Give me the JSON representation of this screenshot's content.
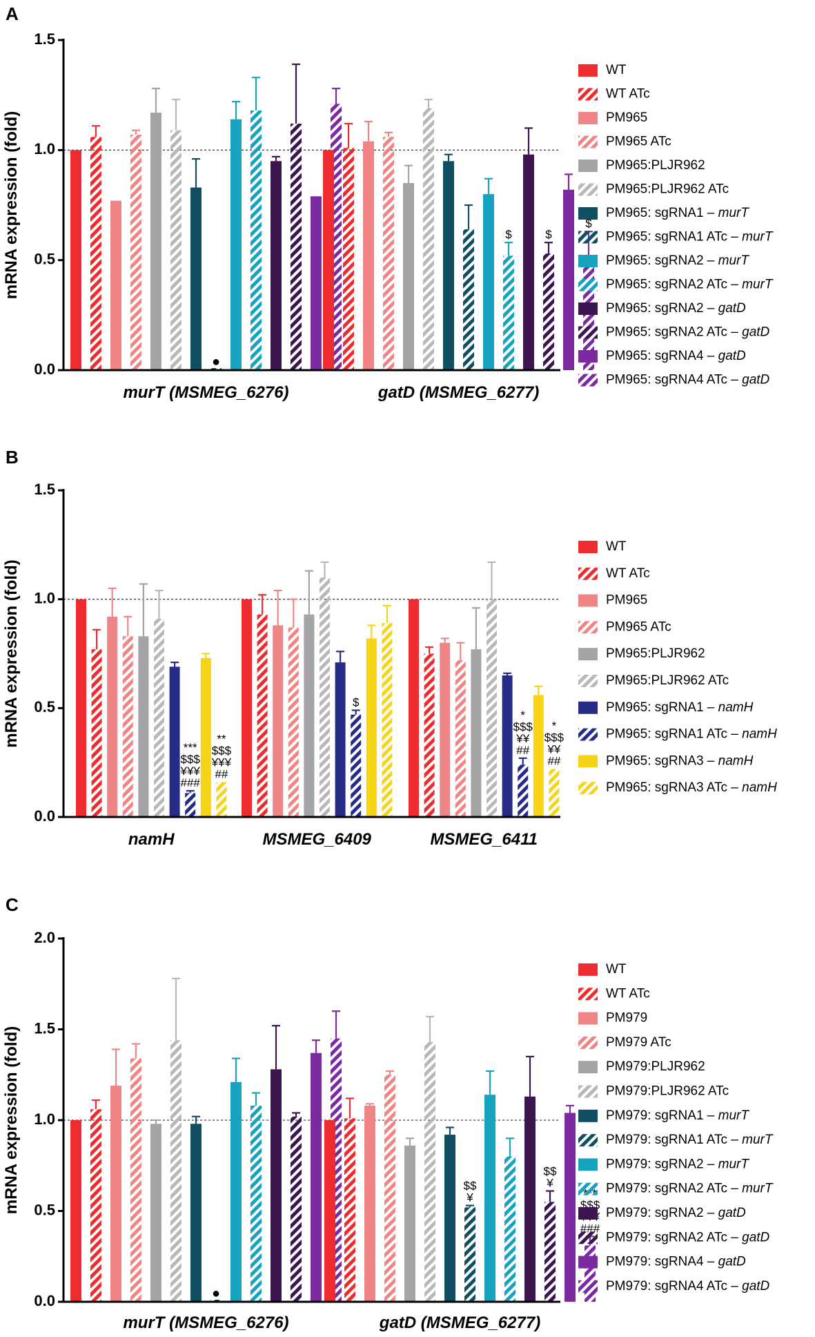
{
  "chart_data": [
    {
      "panel": "A",
      "type": "bar",
      "ylabel": "mRNA expression (fold)",
      "ylim": [
        0,
        1.5
      ],
      "yticks": [
        "0.0",
        "0.5",
        "1.0",
        "1.5"
      ],
      "ytick_values": [
        0,
        0.5,
        1.0,
        1.5
      ],
      "reference_line": 1.0,
      "groups": [
        "murT (MSMEG_6276)",
        "gatD (MSMEG_6277)"
      ],
      "series": [
        {
          "name": "WT",
          "label_main": "WT",
          "label_gene": "",
          "color": "#ee2b2f",
          "hatch": false,
          "values": [
            1.0,
            1.0
          ],
          "errors": [
            0,
            0
          ]
        },
        {
          "name": "WT ATc",
          "label_main": "WT ATc",
          "label_gene": "",
          "color": "#ee2b2f",
          "hatch": true,
          "values": [
            1.06,
            1.01
          ],
          "errors": [
            0.05,
            0.11
          ]
        },
        {
          "name": "PM965",
          "label_main": "PM965",
          "label_gene": "",
          "color": "#f08585",
          "hatch": false,
          "values": [
            0.77,
            1.04
          ],
          "errors": [
            0,
            0.09
          ]
        },
        {
          "name": "PM965 ATc",
          "label_main": "PM965 ATc",
          "label_gene": "",
          "color": "#f08585",
          "hatch": true,
          "values": [
            1.07,
            1.06
          ],
          "errors": [
            0.02,
            0.02
          ]
        },
        {
          "name": "PM965:PLJR962",
          "label_main": "PM965:PLJR962",
          "label_gene": "",
          "color": "#a4a4a6",
          "hatch": false,
          "values": [
            1.17,
            0.85
          ],
          "errors": [
            0.11,
            0.08
          ]
        },
        {
          "name": "PM965:PLJR962 ATc",
          "label_main": "PM965:PLJR962 ATc",
          "label_gene": "",
          "color": "#b8b8ba",
          "hatch": true,
          "values": [
            1.09,
            1.19
          ],
          "errors": [
            0.14,
            0.04
          ]
        },
        {
          "name": "PM965: sgRNA1 – murT",
          "label_main": "PM965: sgRNA1 – ",
          "label_gene": "murT",
          "color": "#104f62",
          "hatch": false,
          "values": [
            0.83,
            0.95
          ],
          "errors": [
            0.13,
            0.03
          ]
        },
        {
          "name": "PM965: sgRNA1 ATc – murT",
          "label_main": "PM965: sgRNA1 ATc – ",
          "label_gene": "murT",
          "color": "#104f62",
          "hatch": true,
          "values": [
            0.0,
            0.64
          ],
          "errors": [
            0,
            0.11
          ]
        },
        {
          "name": "PM965: sgRNA2 – murT",
          "label_main": "PM965: sgRNA2 – ",
          "label_gene": "murT",
          "color": "#16a3bf",
          "hatch": false,
          "values": [
            1.14,
            0.8
          ],
          "errors": [
            0.08,
            0.07
          ]
        },
        {
          "name": "PM965: sgRNA2 ATc – murT",
          "label_main": "PM965: sgRNA2 ATc – ",
          "label_gene": "murT",
          "color": "#16a3bf",
          "hatch": true,
          "values": [
            1.18,
            0.52
          ],
          "errors": [
            0.15,
            0.06
          ]
        },
        {
          "name": "PM965: sgRNA2 – gatD",
          "label_main": "PM965: sgRNA2 – ",
          "label_gene": "gatD",
          "color": "#3b1450",
          "hatch": false,
          "values": [
            0.95,
            0.98
          ],
          "errors": [
            0.02,
            0.12
          ]
        },
        {
          "name": "PM965: sgRNA2 ATc – gatD",
          "label_main": "PM965: sgRNA2 ATc – ",
          "label_gene": "gatD",
          "color": "#3b1450",
          "hatch": true,
          "values": [
            1.12,
            0.53
          ],
          "errors": [
            0.27,
            0.05
          ]
        },
        {
          "name": "PM965: sgRNA4 – gatD",
          "label_main": "PM965: sgRNA4 – ",
          "label_gene": "gatD",
          "color": "#7b2aa0",
          "hatch": false,
          "values": [
            0.79,
            0.82
          ],
          "errors": [
            0,
            0.07
          ]
        },
        {
          "name": "PM965: sgRNA4 ATc – gatD",
          "label_main": "PM965: sgRNA4 ATc – ",
          "label_gene": "gatD",
          "color": "#7b2aa0",
          "hatch": true,
          "values": [
            1.21,
            0.51
          ],
          "errors": [
            0.07,
            0.12
          ]
        }
      ],
      "annotations": [
        {
          "group": 0,
          "series": 7,
          "text": "●"
        },
        {
          "group": 1,
          "series": 9,
          "text": "$"
        },
        {
          "group": 1,
          "series": 11,
          "text": "$"
        },
        {
          "group": 1,
          "series": 13,
          "text": "$"
        }
      ]
    },
    {
      "panel": "B",
      "type": "bar",
      "ylabel": "mRNA expression (fold)",
      "ylim": [
        0,
        1.5
      ],
      "yticks": [
        "0.0",
        "0.5",
        "1.0",
        "1.5"
      ],
      "ytick_values": [
        0,
        0.5,
        1.0,
        1.5
      ],
      "reference_line": 1.0,
      "groups": [
        "namH",
        "MSMEG_6409",
        "MSMEG_6411"
      ],
      "series": [
        {
          "name": "WT",
          "label_main": "WT",
          "label_gene": "",
          "color": "#ee2b2f",
          "hatch": false,
          "values": [
            1.0,
            1.0,
            1.0
          ],
          "errors": [
            0,
            0,
            0
          ]
        },
        {
          "name": "WT ATc",
          "label_main": "WT ATc",
          "label_gene": "",
          "color": "#ee2b2f",
          "hatch": true,
          "values": [
            0.77,
            0.93,
            0.75
          ],
          "errors": [
            0.09,
            0.09,
            0.03
          ]
        },
        {
          "name": "PM965",
          "label_main": "PM965",
          "label_gene": "",
          "color": "#f08585",
          "hatch": false,
          "values": [
            0.92,
            0.88,
            0.8
          ],
          "errors": [
            0.13,
            0.16,
            0.02
          ]
        },
        {
          "name": "PM965 ATc",
          "label_main": "PM965 ATc",
          "label_gene": "",
          "color": "#f08585",
          "hatch": true,
          "values": [
            0.83,
            0.87,
            0.72
          ],
          "errors": [
            0.09,
            0.13,
            0.08
          ]
        },
        {
          "name": "PM965:PLJR962",
          "label_main": "PM965:PLJR962",
          "label_gene": "",
          "color": "#a4a4a6",
          "hatch": false,
          "values": [
            0.83,
            0.93,
            0.77
          ],
          "errors": [
            0.24,
            0.2,
            0.19
          ]
        },
        {
          "name": "PM965:PLJR962 ATc",
          "label_main": "PM965:PLJR962 ATc",
          "label_gene": "",
          "color": "#b8b8ba",
          "hatch": true,
          "values": [
            0.91,
            1.1,
            1.0
          ],
          "errors": [
            0.13,
            0.07,
            0.17
          ]
        },
        {
          "name": "PM965: sgRNA1 – namH",
          "label_main": "PM965: sgRNA1 – ",
          "label_gene": "namH",
          "color": "#262b86",
          "hatch": false,
          "values": [
            0.69,
            0.71,
            0.65
          ],
          "errors": [
            0.02,
            0.05,
            0.01
          ]
        },
        {
          "name": "PM965: sgRNA1 ATc – namH",
          "label_main": "PM965: sgRNA1 ATc – ",
          "label_gene": "namH",
          "color": "#262b86",
          "hatch": true,
          "values": [
            0.11,
            0.47,
            0.24
          ],
          "errors": [
            0.01,
            0.02,
            0.03
          ]
        },
        {
          "name": "PM965: sgRNA3 – namH",
          "label_main": "PM965: sgRNA3 – ",
          "label_gene": "namH",
          "color": "#f7d417",
          "hatch": false,
          "values": [
            0.73,
            0.82,
            0.56
          ],
          "errors": [
            0.02,
            0.06,
            0.04
          ]
        },
        {
          "name": "PM965: sgRNA3 ATc – namH",
          "label_main": "PM965: sgRNA3 ATc – ",
          "label_gene": "namH",
          "color": "#f7d417",
          "hatch": true,
          "values": [
            0.16,
            0.89,
            0.22
          ],
          "errors": [
            0,
            0.08,
            0
          ]
        }
      ],
      "annotations": [
        {
          "group": 0,
          "series": 7,
          "text": "***\n$$$\n¥¥¥\n###"
        },
        {
          "group": 0,
          "series": 9,
          "text": "**\n$$$\n¥¥¥\n##"
        },
        {
          "group": 1,
          "series": 7,
          "text": "$"
        },
        {
          "group": 2,
          "series": 7,
          "text": "*\n$$$\n¥¥\n##"
        },
        {
          "group": 2,
          "series": 9,
          "text": "*\n$$$\n¥¥\n##"
        }
      ]
    },
    {
      "panel": "C",
      "type": "bar",
      "ylabel": "mRNA expression (fold)",
      "ylim": [
        0,
        2.0
      ],
      "yticks": [
        "0.0",
        "0.5",
        "1.0",
        "1.5",
        "2.0"
      ],
      "ytick_values": [
        0,
        0.5,
        1.0,
        1.5,
        2.0
      ],
      "reference_line": 1.0,
      "groups": [
        "murT (MSMEG_6276)",
        "gatD (MSMEG_6277)"
      ],
      "series": [
        {
          "name": "WT",
          "label_main": "WT",
          "label_gene": "",
          "color": "#ee2b2f",
          "hatch": false,
          "values": [
            1.0,
            1.0
          ],
          "errors": [
            0,
            0
          ]
        },
        {
          "name": "WT ATc",
          "label_main": "WT ATc",
          "label_gene": "",
          "color": "#ee2b2f",
          "hatch": true,
          "values": [
            1.06,
            1.01
          ],
          "errors": [
            0.05,
            0.11
          ]
        },
        {
          "name": "PM979",
          "label_main": "PM979",
          "label_gene": "",
          "color": "#f08585",
          "hatch": false,
          "values": [
            1.19,
            1.08
          ],
          "errors": [
            0.2,
            0.01
          ]
        },
        {
          "name": "PM979 ATc",
          "label_main": "PM979 ATc",
          "label_gene": "",
          "color": "#f08585",
          "hatch": true,
          "values": [
            1.34,
            1.25
          ],
          "errors": [
            0.08,
            0.02
          ]
        },
        {
          "name": "PM979:PLJR962",
          "label_main": "PM979:PLJR962",
          "label_gene": "",
          "color": "#a4a4a6",
          "hatch": false,
          "values": [
            0.98,
            0.86
          ],
          "errors": [
            0.02,
            0.04
          ]
        },
        {
          "name": "PM979:PLJR962 ATc",
          "label_main": "PM979:PLJR962 ATc",
          "label_gene": "",
          "color": "#b8b8ba",
          "hatch": true,
          "values": [
            1.44,
            1.43
          ],
          "errors": [
            0.34,
            0.14
          ]
        },
        {
          "name": "PM979: sgRNA1 – murT",
          "label_main": "PM979: sgRNA1 – ",
          "label_gene": "murT",
          "color": "#104f62",
          "hatch": false,
          "values": [
            0.98,
            0.92
          ],
          "errors": [
            0.04,
            0.04
          ]
        },
        {
          "name": "PM979: sgRNA1 ATc – murT",
          "label_main": "PM979: sgRNA1 ATc – ",
          "label_gene": "murT",
          "color": "#104f62",
          "hatch": true,
          "values": [
            0.0,
            0.52
          ],
          "errors": [
            0,
            0.01
          ]
        },
        {
          "name": "PM979: sgRNA2 – murT",
          "label_main": "PM979: sgRNA2 – ",
          "label_gene": "murT",
          "color": "#16a3bf",
          "hatch": false,
          "values": [
            1.21,
            1.14
          ],
          "errors": [
            0.13,
            0.13
          ]
        },
        {
          "name": "PM979: sgRNA2 ATc – murT",
          "label_main": "PM979: sgRNA2 ATc – ",
          "label_gene": "murT",
          "color": "#16a3bf",
          "hatch": true,
          "values": [
            1.08,
            0.8
          ],
          "errors": [
            0.07,
            0.1
          ]
        },
        {
          "name": "PM979: sgRNA2 – gatD",
          "label_main": "PM979: sgRNA2 – ",
          "label_gene": "gatD",
          "color": "#3b1450",
          "hatch": false,
          "values": [
            1.28,
            1.13
          ],
          "errors": [
            0.24,
            0.22
          ]
        },
        {
          "name": "PM979: sgRNA2 ATc – gatD",
          "label_main": "PM979: sgRNA2 ATc – ",
          "label_gene": "gatD",
          "color": "#3b1450",
          "hatch": true,
          "values": [
            1.02,
            0.55
          ],
          "errors": [
            0.02,
            0.06
          ]
        },
        {
          "name": "PM979: sgRNA4 – gatD",
          "label_main": "PM979: sgRNA4 – ",
          "label_gene": "gatD",
          "color": "#7b2aa0",
          "hatch": false,
          "values": [
            1.37,
            1.04
          ],
          "errors": [
            0.07,
            0.04
          ]
        },
        {
          "name": "PM979: sgRNA4 ATc – gatD",
          "label_main": "PM979: sgRNA4 ATc – ",
          "label_gene": "gatD",
          "color": "#7b2aa0",
          "hatch": true,
          "values": [
            1.45,
            0.31
          ],
          "errors": [
            0.15,
            0.05
          ]
        }
      ],
      "annotations": [
        {
          "group": 0,
          "series": 7,
          "text": "●"
        },
        {
          "group": 1,
          "series": 7,
          "text": "$$\n¥"
        },
        {
          "group": 1,
          "series": 11,
          "text": "$$\n¥"
        },
        {
          "group": 1,
          "series": 13,
          "text": "***\n$$$\n¥¥¥\n###"
        }
      ]
    }
  ]
}
